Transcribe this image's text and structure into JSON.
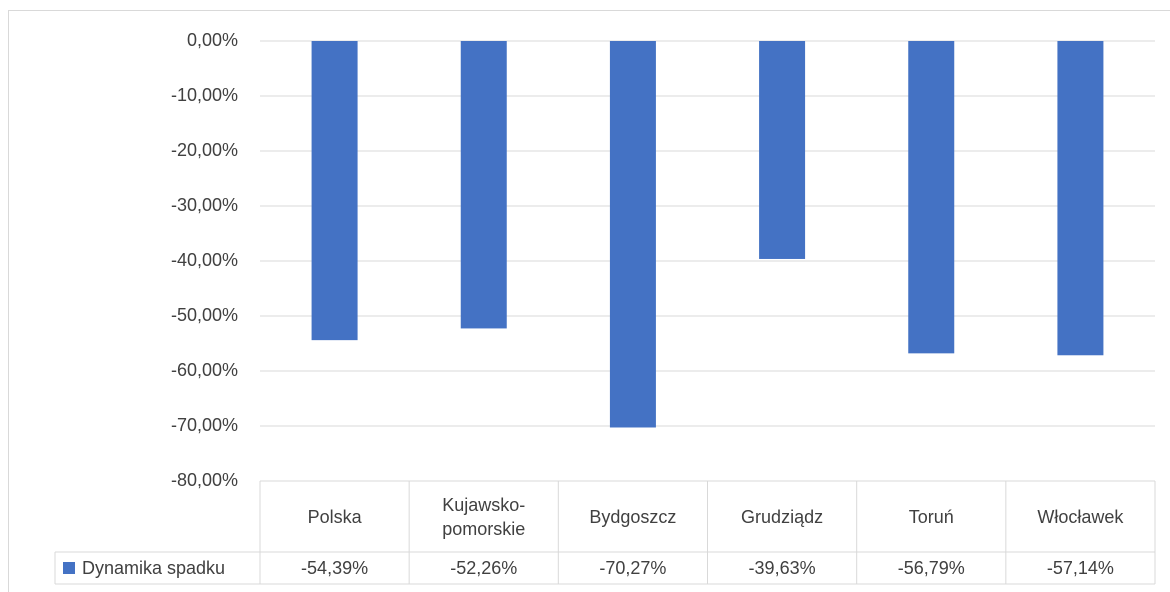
{
  "chart_data": {
    "type": "bar",
    "categories": [
      "Polska",
      "Kujawsko-pomorskie",
      "Bydgoszcz",
      "Grudziądz",
      "Toruń",
      "Włocławek"
    ],
    "series": [
      {
        "name": "Dynamika spadku",
        "color": "#4472c4",
        "values": [
          -54.39,
          -52.26,
          -70.27,
          -39.63,
          -56.79,
          -57.14
        ],
        "value_labels": [
          "-54,39%",
          "-52,26%",
          "-70,27%",
          "-39,63%",
          "-56,79%",
          "-57,14%"
        ]
      }
    ],
    "ylim": [
      -80,
      0
    ],
    "yticks": [
      {
        "value": 0,
        "label": "0,00%"
      },
      {
        "value": -10,
        "label": "-10,00%"
      },
      {
        "value": -20,
        "label": "-20,00%"
      },
      {
        "value": -30,
        "label": "-30,00%"
      },
      {
        "value": -40,
        "label": "-40,00%"
      },
      {
        "value": -50,
        "label": "-50,00%"
      },
      {
        "value": -60,
        "label": "-60,00%"
      },
      {
        "value": -70,
        "label": "-70,00%"
      },
      {
        "value": -80,
        "label": "-80,00%"
      }
    ],
    "grid": true,
    "legend": "table"
  }
}
